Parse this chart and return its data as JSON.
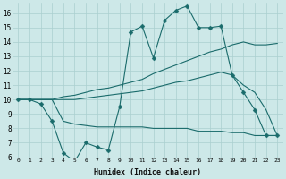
{
  "xlabel": "Humidex (Indice chaleur)",
  "background_color": "#cde8e8",
  "grid_color": "#aacfcf",
  "line_color": "#1a6b6b",
  "xlim": [
    -0.5,
    23.5
  ],
  "ylim": [
    6,
    16.7
  ],
  "yticks": [
    6,
    7,
    8,
    9,
    10,
    11,
    12,
    13,
    14,
    15,
    16
  ],
  "xticks": [
    0,
    1,
    2,
    3,
    4,
    5,
    6,
    7,
    8,
    9,
    10,
    11,
    12,
    13,
    14,
    15,
    16,
    17,
    18,
    19,
    20,
    21,
    22,
    23
  ],
  "line1_x": [
    0,
    1,
    2,
    3,
    4,
    5,
    6,
    7,
    8,
    9,
    10,
    11,
    12,
    13,
    14,
    15,
    16,
    17,
    18,
    19,
    20,
    21,
    22,
    23
  ],
  "line1_y": [
    10.0,
    10.0,
    9.7,
    8.5,
    6.3,
    5.7,
    7.0,
    6.7,
    6.5,
    9.5,
    14.7,
    15.1,
    12.9,
    15.5,
    16.2,
    16.5,
    15.0,
    15.0,
    15.1,
    11.7,
    10.5,
    9.3,
    7.5,
    7.5
  ],
  "line2_x": [
    0,
    1,
    2,
    3,
    4,
    5,
    6,
    7,
    8,
    9,
    10,
    11,
    12,
    13,
    14,
    15,
    16,
    17,
    18,
    19,
    20,
    21,
    22,
    23
  ],
  "line2_y": [
    10.0,
    10.0,
    10.0,
    10.0,
    10.2,
    10.3,
    10.5,
    10.7,
    10.8,
    11.0,
    11.2,
    11.4,
    11.8,
    12.1,
    12.4,
    12.7,
    13.0,
    13.3,
    13.5,
    13.8,
    14.0,
    13.8,
    13.8,
    13.9
  ],
  "line3_x": [
    0,
    1,
    2,
    3,
    4,
    5,
    6,
    7,
    8,
    9,
    10,
    11,
    12,
    13,
    14,
    15,
    16,
    17,
    18,
    19,
    20,
    21,
    22,
    23
  ],
  "line3_y": [
    10.0,
    10.0,
    10.0,
    10.0,
    10.0,
    10.0,
    10.1,
    10.2,
    10.3,
    10.4,
    10.5,
    10.6,
    10.8,
    11.0,
    11.2,
    11.3,
    11.5,
    11.7,
    11.9,
    11.7,
    11.0,
    10.5,
    9.3,
    7.5
  ],
  "line4_x": [
    0,
    1,
    2,
    3,
    4,
    5,
    6,
    7,
    8,
    9,
    10,
    11,
    12,
    13,
    14,
    15,
    16,
    17,
    18,
    19,
    20,
    21,
    22,
    23
  ],
  "line4_y": [
    10.0,
    10.0,
    10.0,
    10.0,
    8.5,
    8.3,
    8.2,
    8.1,
    8.1,
    8.1,
    8.1,
    8.1,
    8.0,
    8.0,
    8.0,
    8.0,
    7.8,
    7.8,
    7.8,
    7.7,
    7.7,
    7.5,
    7.5,
    7.5
  ]
}
